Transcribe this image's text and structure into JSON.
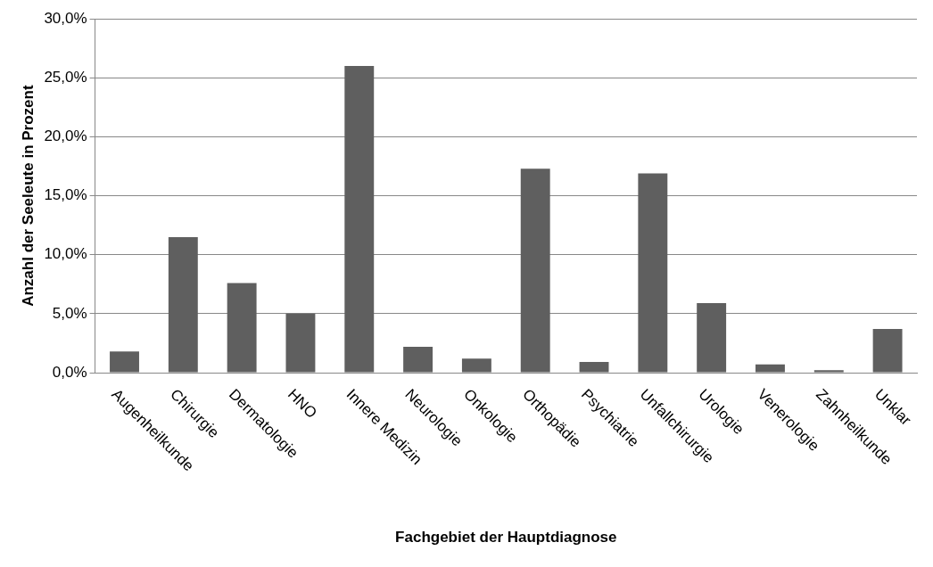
{
  "chart_data": {
    "type": "bar",
    "xlabel": "Fachgebiet der Hauptdiagnose",
    "ylabel": "Anzahl der Seeleute in Prozent",
    "categories": [
      "Augenheilkunde",
      "Chirurgie",
      "Dermatologie",
      "HNO",
      "Innere Medizin",
      "Neurologie",
      "Onkologie",
      "Orthopädie",
      "Psychiatrie",
      "Unfallchirurgie",
      "Urologie",
      "Venerologie",
      "Zahnheilkunde",
      "Unklar"
    ],
    "values": [
      1.8,
      11.5,
      7.6,
      5.0,
      26.0,
      2.2,
      1.2,
      17.3,
      0.9,
      16.9,
      5.9,
      0.7,
      0.2,
      3.7
    ],
    "color": "#5f5f5f",
    "ylim": [
      0,
      30
    ],
    "yticks": [
      {
        "value": 0,
        "label": "0,0%"
      },
      {
        "value": 5,
        "label": "5,0%"
      },
      {
        "value": 10,
        "label": "10,0%"
      },
      {
        "value": 15,
        "label": "15,0%"
      },
      {
        "value": 20,
        "label": "20,0%"
      },
      {
        "value": 25,
        "label": "25,0%"
      },
      {
        "value": 30,
        "label": "30,0%"
      }
    ],
    "grid": "y",
    "legend": false
  }
}
